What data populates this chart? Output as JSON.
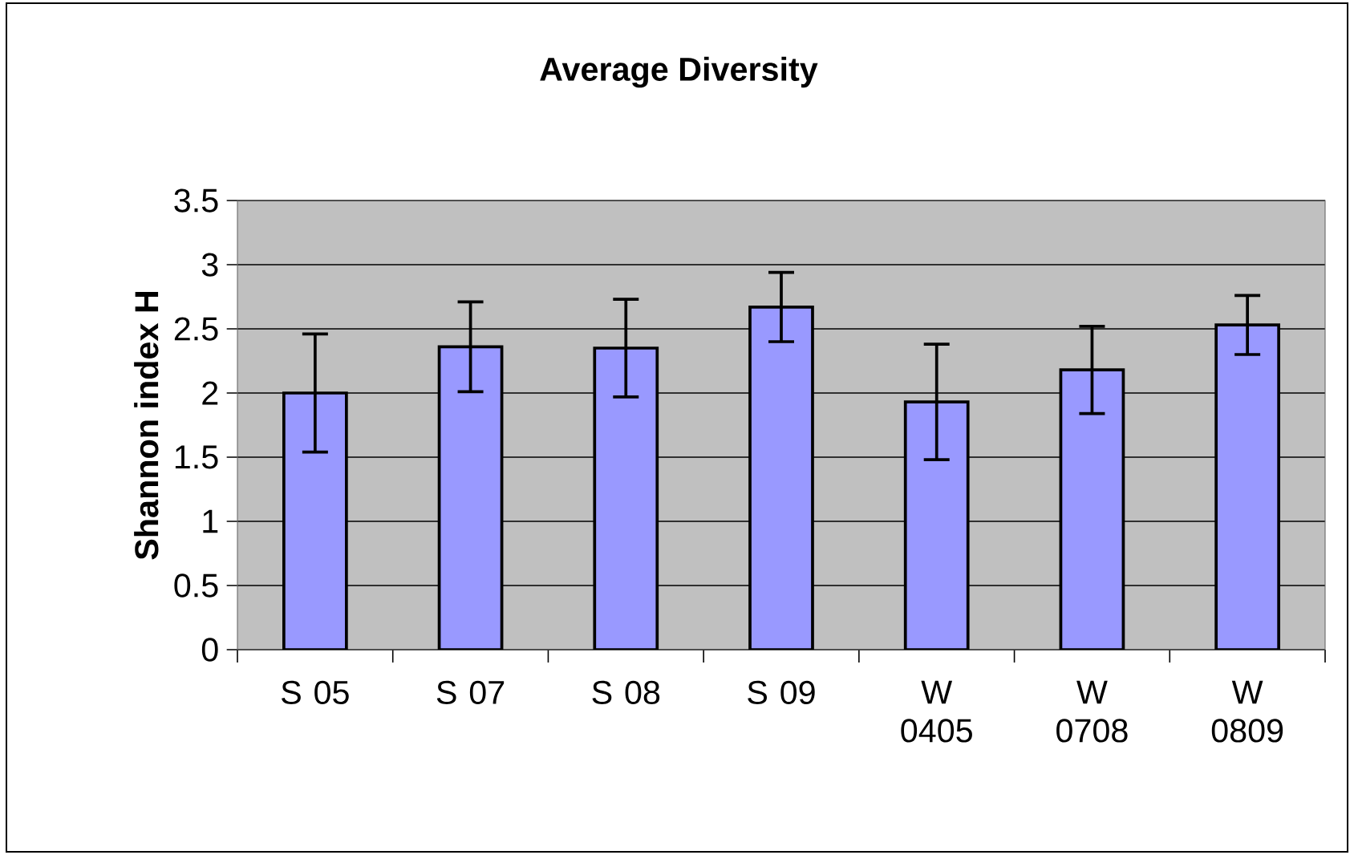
{
  "chart_data": {
    "type": "bar",
    "title": "Average Diversity",
    "ylabel": "Shannon index H",
    "categories": [
      "S 05",
      "S 07",
      "S 08",
      "S 09",
      "W 0405",
      "W 0708",
      "W 0809"
    ],
    "values": [
      2.0,
      2.36,
      2.35,
      2.67,
      1.93,
      2.18,
      2.53
    ],
    "errors": [
      0.46,
      0.35,
      0.38,
      0.27,
      0.45,
      0.34,
      0.23
    ],
    "color": "#9999ff",
    "ylim": [
      0,
      3.5
    ],
    "yticks": [
      0,
      0.5,
      1,
      1.5,
      2,
      2.5,
      3,
      3.5
    ],
    "grid": "y"
  }
}
